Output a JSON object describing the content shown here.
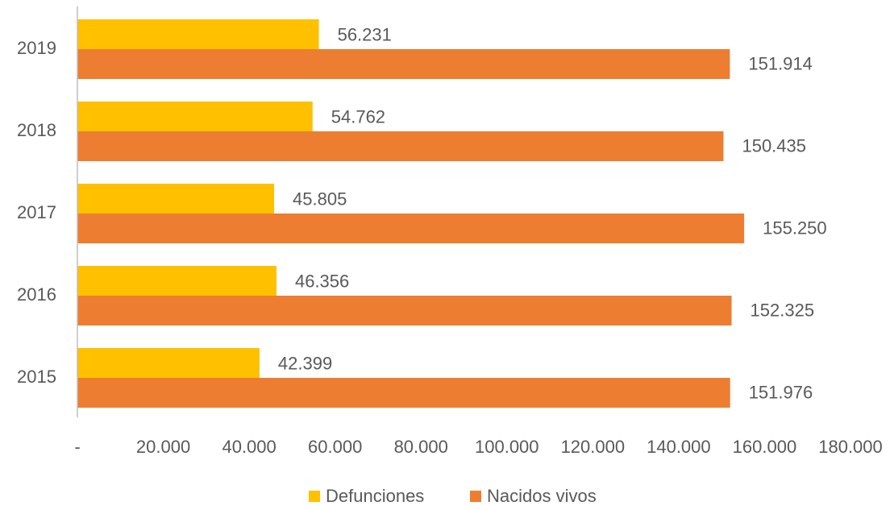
{
  "chart_data": {
    "type": "bar",
    "orientation": "horizontal",
    "categories": [
      "2015",
      "2016",
      "2017",
      "2018",
      "2019"
    ],
    "series": [
      {
        "name": "Defunciones",
        "color": "#FFC000",
        "values": [
          42399,
          46356,
          45805,
          54762,
          56231
        ],
        "value_labels": [
          "42.399",
          "46.356",
          "45.805",
          "54.762",
          "56.231"
        ]
      },
      {
        "name": "Nacidos vivos",
        "color": "#ED7D31",
        "values": [
          151976,
          152325,
          155250,
          150435,
          151914
        ],
        "value_labels": [
          "151.976",
          "152.325",
          "155.250",
          "150.435",
          "151.914"
        ]
      }
    ],
    "xlim": [
      0,
      180000
    ],
    "xticks": [
      {
        "value": 0,
        "label": "-"
      },
      {
        "value": 20000,
        "label": "20.000"
      },
      {
        "value": 40000,
        "label": "40.000"
      },
      {
        "value": 60000,
        "label": "60.000"
      },
      {
        "value": 80000,
        "label": "80.000"
      },
      {
        "value": 100000,
        "label": "100.000"
      },
      {
        "value": 120000,
        "label": "120.000"
      },
      {
        "value": 140000,
        "label": "140.000"
      },
      {
        "value": 160000,
        "label": "160.000"
      },
      {
        "value": 180000,
        "label": "180.000"
      }
    ],
    "legend": "bottom",
    "grid": false
  }
}
